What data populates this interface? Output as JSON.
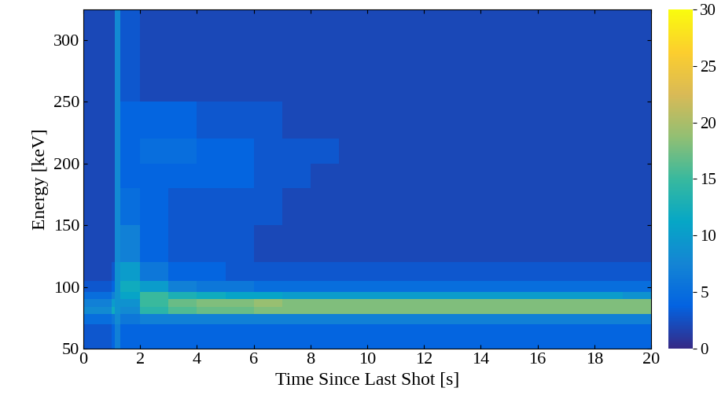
{
  "chart_data": {
    "type": "heatmap",
    "x_label": "Time Since Last Shot [s]",
    "y_label": "Energy [keV]",
    "xlim": [
      0,
      20
    ],
    "ylim": [
      50,
      325
    ],
    "xticks": [
      0,
      2,
      4,
      6,
      8,
      10,
      12,
      14,
      16,
      18,
      20
    ],
    "yticks": [
      50,
      100,
      150,
      200,
      250,
      300
    ],
    "x_edges": [
      0,
      1,
      1.1,
      1.3,
      2,
      3,
      4,
      5,
      6,
      7,
      8,
      9,
      10,
      11,
      12,
      13,
      14,
      15,
      16,
      17,
      18,
      19,
      20
    ],
    "y_edges": [
      50,
      70,
      78,
      84,
      90,
      96,
      105,
      120,
      150,
      180,
      200,
      220,
      250,
      280,
      325
    ],
    "counts": [
      [
        3,
        4,
        7,
        4,
        4,
        4,
        4,
        4,
        4,
        4,
        4,
        4,
        4,
        4,
        4,
        4,
        4,
        4,
        4,
        4,
        4,
        4
      ],
      [
        5,
        6,
        8,
        6,
        7,
        7,
        7,
        7,
        7,
        7,
        7,
        7,
        7,
        7,
        7,
        7,
        7,
        7,
        7,
        7,
        7,
        7
      ],
      [
        8,
        12,
        9,
        8,
        14,
        16,
        17,
        17,
        18,
        18,
        18,
        18,
        18,
        18,
        18,
        18,
        18,
        18,
        18,
        18,
        18,
        18
      ],
      [
        7,
        10,
        9,
        9,
        15,
        17,
        18,
        18,
        19,
        18,
        18,
        18,
        18,
        18,
        18,
        18,
        18,
        18,
        18,
        18,
        18,
        18
      ],
      [
        5,
        7,
        9,
        11,
        15,
        13,
        12,
        11,
        11,
        10,
        10,
        10,
        10,
        10,
        10,
        10,
        10,
        10,
        10,
        10,
        10,
        9
      ],
      [
        3,
        4,
        9,
        12,
        10,
        7,
        6,
        6,
        5,
        5,
        5,
        5,
        5,
        5,
        5,
        5,
        5,
        5,
        5,
        5,
        5,
        5
      ],
      [
        2,
        3,
        9,
        10,
        6,
        4,
        4,
        3,
        3,
        3,
        3,
        3,
        3,
        3,
        3,
        3,
        3,
        3,
        3,
        3,
        3,
        3
      ],
      [
        2,
        2,
        8,
        7,
        4,
        3,
        3,
        3,
        2,
        2,
        2,
        2,
        2,
        2,
        2,
        2,
        2,
        2,
        2,
        2,
        2,
        2
      ],
      [
        2,
        2,
        8,
        5,
        4,
        3,
        3,
        3,
        3,
        2,
        2,
        2,
        2,
        2,
        2,
        2,
        2,
        2,
        2,
        2,
        2,
        2
      ],
      [
        2,
        2,
        8,
        4,
        4,
        4,
        4,
        4,
        3,
        3,
        2,
        2,
        2,
        2,
        2,
        2,
        2,
        2,
        2,
        2,
        2,
        2
      ],
      [
        2,
        2,
        8,
        4,
        5,
        5,
        4,
        4,
        3,
        3,
        3,
        2,
        2,
        2,
        2,
        2,
        2,
        2,
        2,
        2,
        2,
        2
      ],
      [
        2,
        2,
        8,
        4,
        4,
        4,
        3,
        3,
        3,
        2,
        2,
        2,
        2,
        2,
        2,
        2,
        2,
        2,
        2,
        2,
        2,
        2
      ],
      [
        2,
        2,
        8,
        3,
        2,
        2,
        2,
        2,
        2,
        2,
        2,
        2,
        2,
        2,
        2,
        2,
        2,
        2,
        2,
        2,
        2,
        2
      ],
      [
        2,
        2,
        8,
        3,
        2,
        2,
        2,
        2,
        2,
        2,
        2,
        2,
        2,
        2,
        2,
        2,
        2,
        2,
        2,
        2,
        2,
        2
      ]
    ],
    "colorbar_range": [
      0,
      30
    ],
    "colorbar_ticks": [
      0,
      5,
      10,
      15,
      20,
      25,
      30
    ]
  }
}
